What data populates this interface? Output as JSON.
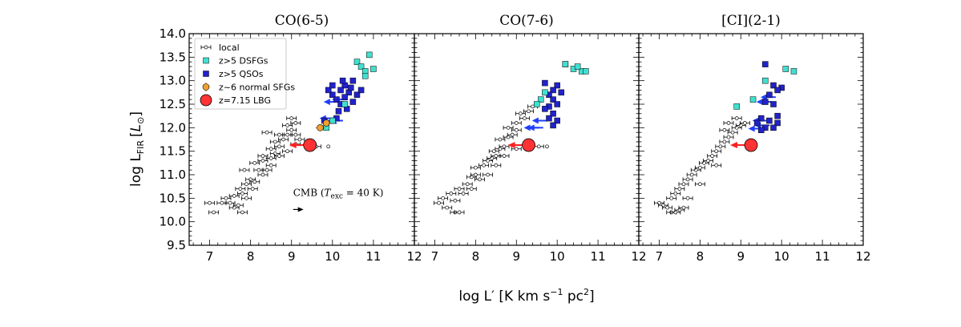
{
  "chart_data": {
    "type": "scatter",
    "ylabel_text": "log L",
    "ylabel_sub": "FIR",
    "ylabel_unit_open": "[",
    "ylabel_unit_L": "L",
    "ylabel_unit_sun": "⊙",
    "ylabel_unit_close": "]",
    "xlabel_text": "log L′ [K km s",
    "xlabel_sup1": "−1",
    "xlabel_mid": " pc",
    "xlabel_sup2": "2",
    "xlabel_end": "]",
    "xlim": [
      6.5,
      12
    ],
    "ylim": [
      9.5,
      14.0
    ],
    "xticks": [
      "7",
      "8",
      "9",
      "10",
      "11",
      "12"
    ],
    "yticks": [
      "9.5",
      "10.0",
      "10.5",
      "11.0",
      "11.5",
      "12.0",
      "12.5",
      "13.0",
      "13.5",
      "14.0"
    ],
    "legend": [
      {
        "label": "local",
        "marker": "errorbar"
      },
      {
        "label": "z>5 DSFGs",
        "marker": "cyan-square"
      },
      {
        "label": "z>5 QSOs",
        "marker": "blue-square"
      },
      {
        "label": "z~6 normal SFGs",
        "marker": "orange-circle"
      },
      {
        "label": "z=7.15 LBG",
        "marker": "red-circle"
      }
    ],
    "colors": {
      "local": "#ffffff",
      "dsfg": "#40e0d0",
      "qso": "#2222cc",
      "normal_sfg": "#f0a030",
      "lbg": "#ff3333",
      "arrow": "#1f3fff"
    },
    "annotation": {
      "text_pre": "CMB (",
      "T": "T",
      "T_sub": "exc",
      "text_post": " = 40 K)",
      "x": 9.0,
      "y": 10.55
    },
    "panels": [
      {
        "title": "CO(6-5)",
        "local": [
          [
            7.0,
            10.4
          ],
          [
            7.1,
            10.2
          ],
          [
            7.3,
            10.4
          ],
          [
            7.4,
            10.5
          ],
          [
            7.5,
            10.4
          ],
          [
            7.6,
            10.3
          ],
          [
            7.7,
            10.35
          ],
          [
            7.8,
            10.2
          ],
          [
            7.6,
            10.55
          ],
          [
            7.8,
            10.6
          ],
          [
            7.9,
            10.5
          ],
          [
            7.75,
            10.7
          ],
          [
            7.9,
            10.8
          ],
          [
            8.0,
            10.9
          ],
          [
            8.1,
            10.85
          ],
          [
            8.05,
            10.7
          ],
          [
            7.85,
            11.1
          ],
          [
            8.2,
            11.1
          ],
          [
            8.3,
            11.0
          ],
          [
            8.4,
            11.1
          ],
          [
            8.1,
            11.25
          ],
          [
            8.3,
            11.3
          ],
          [
            8.5,
            11.35
          ],
          [
            8.3,
            11.4
          ],
          [
            8.6,
            11.45
          ],
          [
            8.5,
            11.55
          ],
          [
            8.7,
            11.6
          ],
          [
            8.6,
            11.7
          ],
          [
            8.8,
            11.75
          ],
          [
            8.7,
            11.85
          ],
          [
            8.9,
            11.85
          ],
          [
            9.0,
            11.95
          ],
          [
            9.1,
            11.85
          ],
          [
            9.2,
            11.75
          ],
          [
            9.6,
            11.6
          ],
          [
            8.9,
            12.05
          ],
          [
            9.1,
            12.1
          ],
          [
            9.0,
            12.2
          ],
          [
            8.4,
            11.9
          ],
          [
            8.7,
            11.4
          ],
          [
            8.9,
            11.5
          ],
          [
            9.1,
            11.65
          ],
          [
            8.5,
            11.2
          ]
        ],
        "dsfg": [
          [
            10.6,
            13.4
          ],
          [
            10.7,
            13.3
          ],
          [
            10.9,
            13.55
          ],
          [
            10.8,
            13.2
          ],
          [
            11.0,
            13.25
          ],
          [
            10.8,
            13.1
          ],
          [
            10.3,
            12.5
          ],
          [
            9.85,
            12.0
          ],
          [
            10.0,
            12.15
          ]
        ],
        "qso": [
          [
            10.3,
            12.9
          ],
          [
            10.5,
            13.0
          ],
          [
            10.2,
            12.8
          ],
          [
            10.4,
            12.75
          ],
          [
            10.6,
            12.7
          ],
          [
            10.0,
            12.7
          ],
          [
            10.1,
            12.6
          ],
          [
            10.3,
            12.65
          ],
          [
            10.5,
            12.55
          ],
          [
            10.2,
            12.5
          ],
          [
            9.9,
            12.8
          ],
          [
            10.45,
            12.85
          ],
          [
            10.7,
            12.8
          ],
          [
            10.15,
            12.35
          ],
          [
            10.1,
            12.2
          ],
          [
            9.8,
            12.15
          ],
          [
            10.35,
            12.4
          ],
          [
            10.0,
            12.9
          ],
          [
            10.25,
            13.0
          ]
        ],
        "arrows": [
          [
            10.2,
            12.6
          ],
          [
            10.0,
            12.55
          ],
          [
            9.9,
            12.2
          ],
          [
            10.1,
            12.15
          ],
          [
            9.95,
            12.1
          ]
        ],
        "normal_sfg": [
          [
            9.85,
            12.1
          ],
          [
            9.7,
            12.0
          ]
        ],
        "lbg": [
          9.45,
          11.63
        ],
        "lbg_arrow": true,
        "open_circle": [
          9.9,
          11.6
        ]
      },
      {
        "title": "CO(7-6)",
        "local": [
          [
            7.1,
            10.4
          ],
          [
            7.2,
            10.5
          ],
          [
            7.3,
            10.3
          ],
          [
            7.4,
            10.6
          ],
          [
            7.5,
            10.45
          ],
          [
            7.6,
            10.7
          ],
          [
            7.7,
            10.6
          ],
          [
            7.5,
            10.2
          ],
          [
            7.6,
            10.2
          ],
          [
            7.8,
            10.8
          ],
          [
            7.9,
            10.7
          ],
          [
            7.9,
            10.95
          ],
          [
            8.0,
            11.0
          ],
          [
            8.1,
            10.9
          ],
          [
            8.0,
            11.15
          ],
          [
            8.2,
            11.2
          ],
          [
            8.3,
            11.3
          ],
          [
            8.4,
            11.35
          ],
          [
            8.5,
            11.4
          ],
          [
            8.45,
            11.5
          ],
          [
            8.6,
            11.55
          ],
          [
            8.7,
            11.6
          ],
          [
            8.6,
            11.75
          ],
          [
            8.8,
            11.8
          ],
          [
            8.9,
            11.85
          ],
          [
            9.0,
            11.95
          ],
          [
            8.8,
            12.0
          ],
          [
            9.0,
            12.1
          ],
          [
            9.2,
            12.2
          ],
          [
            9.1,
            12.3
          ],
          [
            9.3,
            12.35
          ],
          [
            9.4,
            12.45
          ],
          [
            9.0,
            11.55
          ],
          [
            9.3,
            11.6
          ],
          [
            9.55,
            11.6
          ],
          [
            8.3,
            11.0
          ],
          [
            8.5,
            11.2
          ],
          [
            8.7,
            11.4
          ]
        ],
        "dsfg": [
          [
            10.2,
            13.35
          ],
          [
            10.4,
            13.25
          ],
          [
            10.6,
            13.2
          ],
          [
            10.5,
            13.3
          ],
          [
            10.7,
            13.2
          ],
          [
            9.7,
            12.75
          ],
          [
            9.6,
            12.6
          ],
          [
            9.5,
            12.5
          ]
        ],
        "qso": [
          [
            10.0,
            12.9
          ],
          [
            9.9,
            12.8
          ],
          [
            9.8,
            12.7
          ],
          [
            9.9,
            12.6
          ],
          [
            10.0,
            12.5
          ],
          [
            9.8,
            12.45
          ],
          [
            9.7,
            12.4
          ],
          [
            9.9,
            12.3
          ],
          [
            9.8,
            12.2
          ],
          [
            10.0,
            12.15
          ],
          [
            9.9,
            12.05
          ],
          [
            10.2,
            13.35
          ],
          [
            9.7,
            12.95
          ],
          [
            10.1,
            12.75
          ]
        ],
        "arrows": [
          [
            9.6,
            12.15
          ],
          [
            9.4,
            12.0
          ],
          [
            9.5,
            12.0
          ]
        ],
        "normal_sfg": [],
        "lbg": [
          9.3,
          11.63
        ],
        "lbg_arrow": true,
        "open_circle": [
          9.75,
          11.6
        ]
      },
      {
        "title": "[CI](2-1)",
        "local": [
          [
            7.0,
            10.4
          ],
          [
            7.1,
            10.35
          ],
          [
            7.2,
            10.3
          ],
          [
            7.3,
            10.2
          ],
          [
            7.4,
            10.2
          ],
          [
            7.5,
            10.25
          ],
          [
            7.6,
            10.3
          ],
          [
            7.3,
            10.5
          ],
          [
            7.4,
            10.6
          ],
          [
            7.5,
            10.7
          ],
          [
            7.6,
            10.8
          ],
          [
            7.7,
            10.9
          ],
          [
            7.8,
            11.0
          ],
          [
            7.9,
            11.1
          ],
          [
            8.0,
            11.15
          ],
          [
            8.1,
            11.25
          ],
          [
            8.2,
            11.3
          ],
          [
            8.3,
            11.4
          ],
          [
            8.4,
            11.5
          ],
          [
            8.5,
            11.6
          ],
          [
            8.6,
            11.7
          ],
          [
            8.7,
            11.8
          ],
          [
            8.8,
            11.9
          ],
          [
            8.9,
            12.0
          ],
          [
            9.0,
            12.05
          ],
          [
            9.1,
            12.1
          ],
          [
            8.6,
            11.95
          ],
          [
            8.7,
            12.1
          ],
          [
            8.9,
            12.2
          ],
          [
            8.4,
            11.2
          ],
          [
            8.0,
            10.8
          ],
          [
            7.7,
            10.5
          ]
        ],
        "dsfg": [
          [
            10.1,
            13.25
          ],
          [
            10.3,
            13.2
          ],
          [
            9.6,
            13.0
          ],
          [
            9.3,
            12.6
          ],
          [
            8.9,
            12.45
          ]
        ],
        "qso": [
          [
            9.6,
            13.35
          ],
          [
            9.8,
            12.9
          ],
          [
            10.0,
            12.85
          ],
          [
            9.7,
            12.7
          ],
          [
            9.9,
            12.8
          ],
          [
            9.6,
            12.55
          ],
          [
            9.8,
            12.5
          ],
          [
            9.5,
            12.2
          ],
          [
            9.7,
            12.15
          ],
          [
            9.9,
            12.1
          ],
          [
            9.6,
            12.0
          ],
          [
            9.8,
            12.0
          ],
          [
            9.5,
            11.95
          ],
          [
            9.9,
            12.25
          ],
          [
            9.4,
            12.1
          ]
        ],
        "arrows": [
          [
            9.7,
            12.65
          ],
          [
            9.6,
            12.55
          ],
          [
            9.5,
            12.15
          ],
          [
            9.55,
            12.05
          ],
          [
            9.4,
            11.98
          ]
        ],
        "normal_sfg": [],
        "lbg": [
          9.25,
          11.63
        ],
        "lbg_arrow": true,
        "open_circle": null
      }
    ]
  }
}
